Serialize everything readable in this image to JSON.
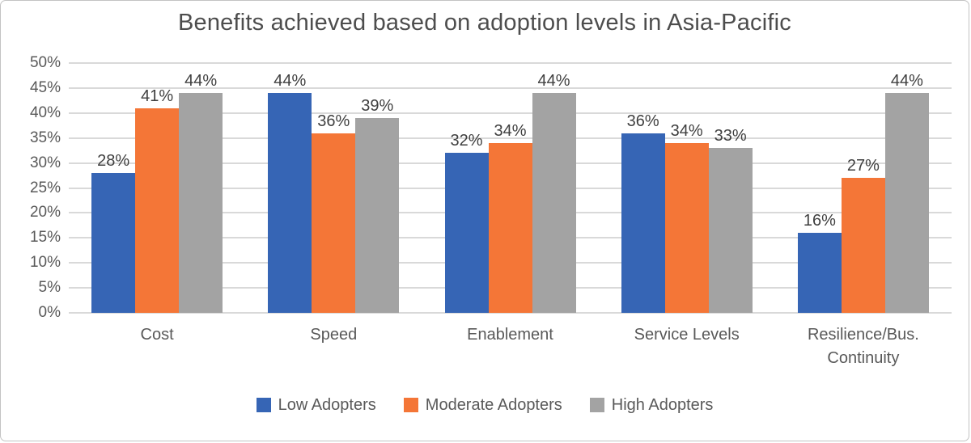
{
  "chart_data": {
    "type": "bar",
    "title": "Benefits achieved based on adoption levels in Asia-Pacific",
    "categories": [
      "Cost",
      "Speed",
      "Enablement",
      "Service Levels",
      "Resilience/Bus. Continuity"
    ],
    "series": [
      {
        "name": "Low Adopters",
        "color": "#3665b5",
        "values": [
          28,
          44,
          32,
          36,
          16
        ]
      },
      {
        "name": "Moderate Adopters",
        "color": "#f47637",
        "values": [
          41,
          36,
          34,
          34,
          27
        ]
      },
      {
        "name": "High Adopters",
        "color": "#a3a3a3",
        "values": [
          44,
          39,
          44,
          33,
          44
        ]
      }
    ],
    "ylim": [
      0,
      50
    ],
    "ytick_step": 5,
    "ytick_suffix": "%",
    "data_label_suffix": "%",
    "grid": true,
    "legend_position": "bottom",
    "colors": {
      "gridline": "#d9d9d9",
      "axis_text": "#595959",
      "data_label_text": "#3f3f3f",
      "title_text": "#4d4d4d",
      "border": "#c3c3c3"
    }
  }
}
